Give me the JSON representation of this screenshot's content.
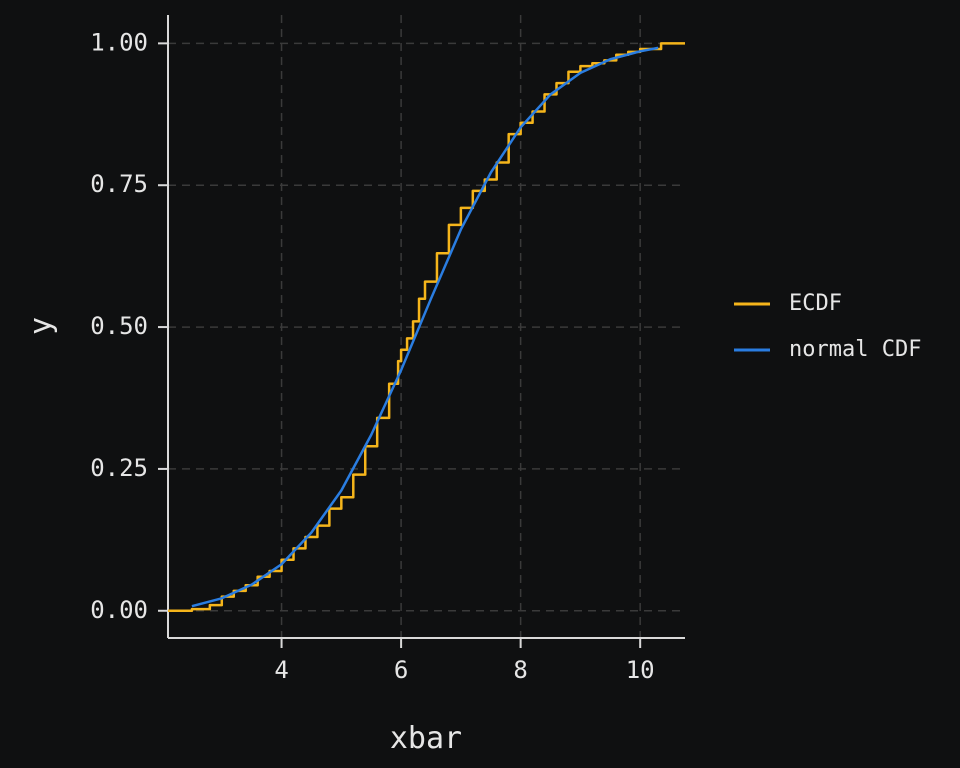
{
  "chart_data": {
    "type": "line",
    "title": "",
    "xlabel": "xbar",
    "ylabel": "y",
    "xlim": [
      2.1,
      10.75
    ],
    "ylim": [
      -0.048,
      1.05
    ],
    "x_ticks": [
      4,
      6,
      8,
      10
    ],
    "y_ticks": [
      0.0,
      0.25,
      0.5,
      0.75,
      1.0
    ],
    "x_tick_labels": [
      "4",
      "6",
      "8",
      "10"
    ],
    "y_tick_labels": [
      "0.00",
      "0.25",
      "0.50",
      "0.75",
      "1.00"
    ],
    "grid": true,
    "legend_position": "right",
    "background": "#0f1011",
    "grid_color": "#3a3a3a",
    "axis_color": "#d9d9d9",
    "series": [
      {
        "name": "ECDF",
        "color": "#f5b51b",
        "style": "step",
        "x": [
          2.1,
          2.5,
          2.8,
          3.0,
          3.2,
          3.4,
          3.6,
          3.8,
          4.0,
          4.2,
          4.4,
          4.6,
          4.8,
          5.0,
          5.2,
          5.4,
          5.6,
          5.8,
          5.95,
          6.0,
          6.1,
          6.2,
          6.3,
          6.4,
          6.6,
          6.8,
          7.0,
          7.2,
          7.4,
          7.6,
          7.8,
          8.0,
          8.2,
          8.4,
          8.6,
          8.8,
          9.0,
          9.2,
          9.4,
          9.6,
          9.8,
          10.0,
          10.35,
          10.75
        ],
        "y": [
          0.0,
          0.003,
          0.01,
          0.025,
          0.035,
          0.045,
          0.06,
          0.07,
          0.09,
          0.11,
          0.13,
          0.15,
          0.18,
          0.2,
          0.24,
          0.29,
          0.34,
          0.4,
          0.44,
          0.46,
          0.48,
          0.51,
          0.55,
          0.58,
          0.63,
          0.68,
          0.71,
          0.74,
          0.76,
          0.79,
          0.84,
          0.86,
          0.88,
          0.91,
          0.93,
          0.95,
          0.96,
          0.965,
          0.97,
          0.98,
          0.985,
          0.99,
          1.0,
          1.0
        ]
      },
      {
        "name": "normal CDF",
        "color": "#2a7de1",
        "style": "line",
        "x": [
          2.5,
          3.0,
          3.5,
          4.0,
          4.5,
          5.0,
          5.5,
          6.0,
          6.5,
          7.0,
          7.5,
          8.0,
          8.5,
          9.0,
          9.5,
          10.0,
          10.3
        ],
        "y": [
          0.008,
          0.022,
          0.046,
          0.082,
          0.138,
          0.212,
          0.31,
          0.424,
          0.55,
          0.672,
          0.772,
          0.852,
          0.91,
          0.948,
          0.972,
          0.986,
          0.992
        ]
      }
    ]
  }
}
